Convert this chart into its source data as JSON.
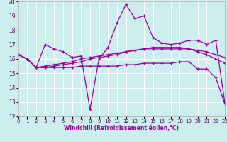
{
  "xlabel": "Windchill (Refroidissement éolien,°C)",
  "bg_color": "#cceeee",
  "line_color": "#990099",
  "xlim": [
    0,
    23
  ],
  "ylim": [
    12,
    20
  ],
  "xticks": [
    0,
    1,
    2,
    3,
    4,
    5,
    6,
    7,
    8,
    9,
    10,
    11,
    12,
    13,
    14,
    15,
    16,
    17,
    18,
    19,
    20,
    21,
    22,
    23
  ],
  "yticks": [
    12,
    13,
    14,
    15,
    16,
    17,
    18,
    19,
    20
  ],
  "lines": [
    {
      "x": [
        0,
        1,
        2,
        3,
        4,
        5,
        6,
        7,
        8,
        9,
        10,
        11,
        12,
        13,
        14,
        15,
        16,
        17,
        18,
        19,
        20,
        21,
        22,
        23
      ],
      "y": [
        16.3,
        16.0,
        15.4,
        17.0,
        16.7,
        16.5,
        16.1,
        16.2,
        12.5,
        16.0,
        16.8,
        18.5,
        19.8,
        18.8,
        19.0,
        17.5,
        17.1,
        17.0,
        17.1,
        17.3,
        17.3,
        17.0,
        17.3,
        13.0
      ]
    },
    {
      "x": [
        0,
        1,
        2,
        3,
        4,
        5,
        6,
        7,
        8,
        9,
        10,
        11,
        12,
        13,
        14,
        15,
        16,
        17,
        18,
        19,
        20,
        21,
        22,
        23
      ],
      "y": [
        16.3,
        16.0,
        15.4,
        15.5,
        15.6,
        15.7,
        15.8,
        16.0,
        16.1,
        16.2,
        16.3,
        16.4,
        16.5,
        16.6,
        16.7,
        16.7,
        16.7,
        16.7,
        16.7,
        16.7,
        16.6,
        16.5,
        16.3,
        16.1
      ]
    },
    {
      "x": [
        0,
        1,
        2,
        3,
        4,
        5,
        6,
        7,
        8,
        9,
        10,
        11,
        12,
        13,
        14,
        15,
        16,
        17,
        18,
        19,
        20,
        21,
        22,
        23
      ],
      "y": [
        16.3,
        16.0,
        15.4,
        15.4,
        15.4,
        15.4,
        15.4,
        15.5,
        15.5,
        15.5,
        15.5,
        15.5,
        15.6,
        15.6,
        15.7,
        15.7,
        15.7,
        15.7,
        15.8,
        15.8,
        15.3,
        15.3,
        14.7,
        12.9
      ]
    },
    {
      "x": [
        0,
        1,
        2,
        3,
        4,
        5,
        6,
        7,
        8,
        9,
        10,
        11,
        12,
        13,
        14,
        15,
        16,
        17,
        18,
        19,
        20,
        21,
        22,
        23
      ],
      "y": [
        16.3,
        16.0,
        15.4,
        15.4,
        15.5,
        15.6,
        15.7,
        15.8,
        16.0,
        16.1,
        16.2,
        16.3,
        16.5,
        16.6,
        16.7,
        16.8,
        16.8,
        16.8,
        16.8,
        16.7,
        16.5,
        16.3,
        16.0,
        15.7
      ]
    }
  ]
}
